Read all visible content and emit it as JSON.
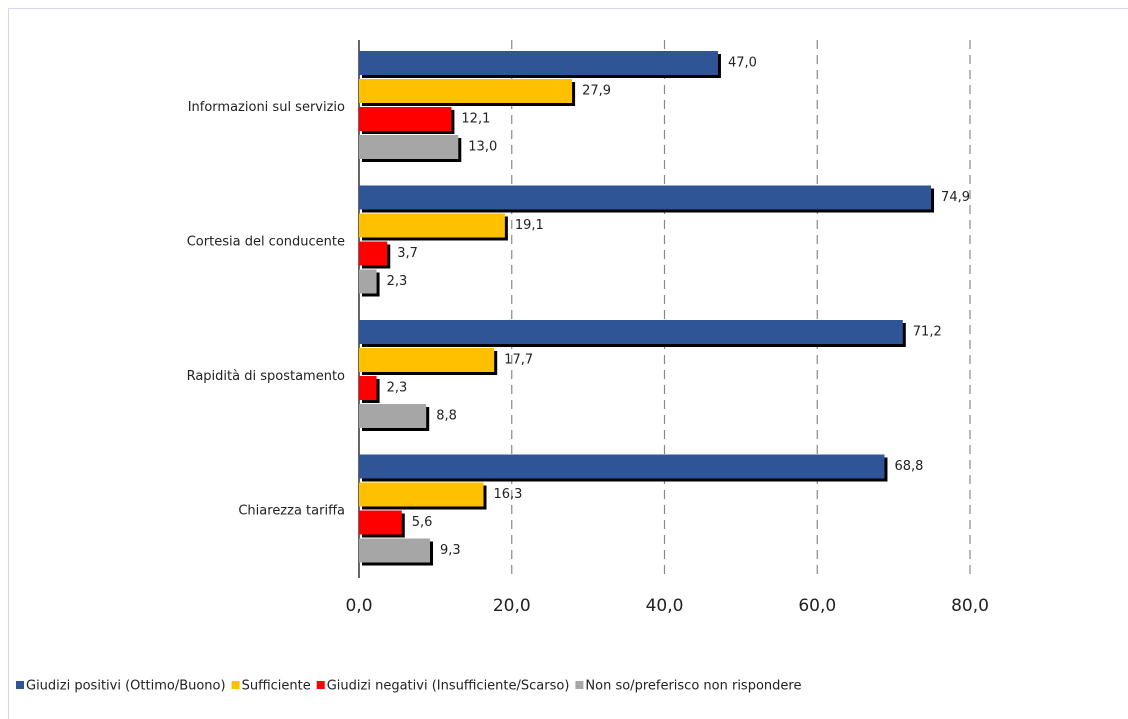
{
  "chart_data": {
    "type": "hbar",
    "categories": [
      "Informazioni sul servizio",
      "Cortesia del conducente",
      "Rapidità di spostamento",
      "Chiarezza tariffa"
    ],
    "series": [
      {
        "name": "Giudizi positivi (Ottimo/Buono)",
        "color": "#2f5597",
        "values": [
          47.0,
          74.9,
          71.2,
          68.8
        ],
        "value_labels": [
          "47,0",
          "74,9",
          "71,2",
          "68,8"
        ]
      },
      {
        "name": "Sufficiente",
        "color": "#ffc000",
        "values": [
          27.9,
          19.1,
          17.7,
          16.3
        ],
        "value_labels": [
          "27,9",
          "19,1",
          "17,7",
          "16,3"
        ]
      },
      {
        "name": "Giudizi negativi (Insufficiente/Scarso)",
        "color": "#ff0000",
        "values": [
          12.1,
          3.7,
          2.3,
          5.6
        ],
        "value_labels": [
          "12,1",
          "3,7",
          "2,3",
          "5,6"
        ]
      },
      {
        "name": "Non so/preferisco non rispondere",
        "color": "#a6a6a6",
        "values": [
          13.0,
          2.3,
          8.8,
          9.3
        ],
        "value_labels": [
          "13,0",
          "2,3",
          "8,8",
          "9,3"
        ]
      }
    ],
    "xlim": [
      0,
      80
    ],
    "xticks": [
      {
        "value": 0,
        "label": "0,0"
      },
      {
        "value": 20,
        "label": "20,0"
      },
      {
        "value": 40,
        "label": "40,0"
      },
      {
        "value": 60,
        "label": "60,0"
      },
      {
        "value": 80,
        "label": "80,0"
      }
    ],
    "grid": true,
    "legend": "bottom"
  }
}
